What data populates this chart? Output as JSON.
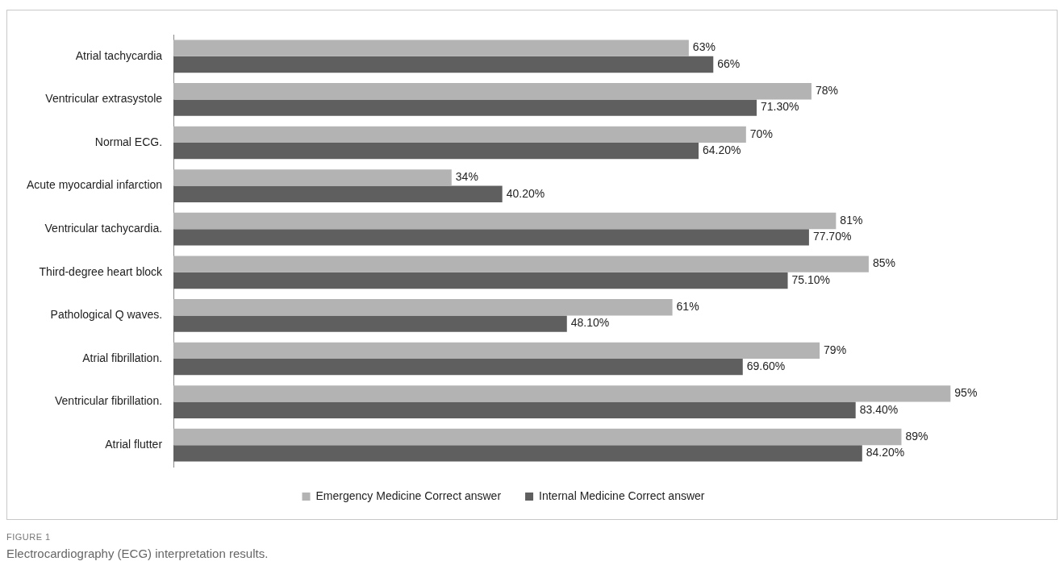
{
  "chart_data": {
    "type": "bar",
    "orientation": "horizontal",
    "title": "Electrocardiography (ECG) interpretation results.",
    "annotations": [
      "FIGURE 1"
    ],
    "categories": [
      "Atrial tachycardia",
      "Ventricular extrasystole",
      "Normal ECG.",
      "Acute myocardial infarction",
      "Ventricular tachycardia.",
      "Third-degree heart block",
      "Pathological Q waves.",
      "Atrial fibrillation.",
      "Ventricular fibrillation.",
      "Atrial flutter"
    ],
    "series": [
      {
        "name": "Emergency Medicine Correct answer",
        "color": "#b3b3b3",
        "values": [
          63,
          78,
          70,
          34,
          81,
          85,
          61,
          79,
          95,
          89
        ],
        "value_labels": [
          "63%",
          "78%",
          "70%",
          "34%",
          "81%",
          "85%",
          "61%",
          "79%",
          "95%",
          "89%"
        ]
      },
      {
        "name": "Internal Medicine Correct answer",
        "color": "#5f5f5f",
        "values": [
          66,
          71.3,
          64.2,
          40.2,
          77.7,
          75.1,
          48.1,
          69.6,
          83.4,
          84.2
        ],
        "value_labels": [
          "66%",
          "71.30%",
          "64.20%",
          "40.20%",
          "77.70%",
          "75.10%",
          "48.10%",
          "69.60%",
          "83.40%",
          "84.20%"
        ]
      }
    ],
    "tick_labels": "y",
    "legend": "bottom"
  }
}
